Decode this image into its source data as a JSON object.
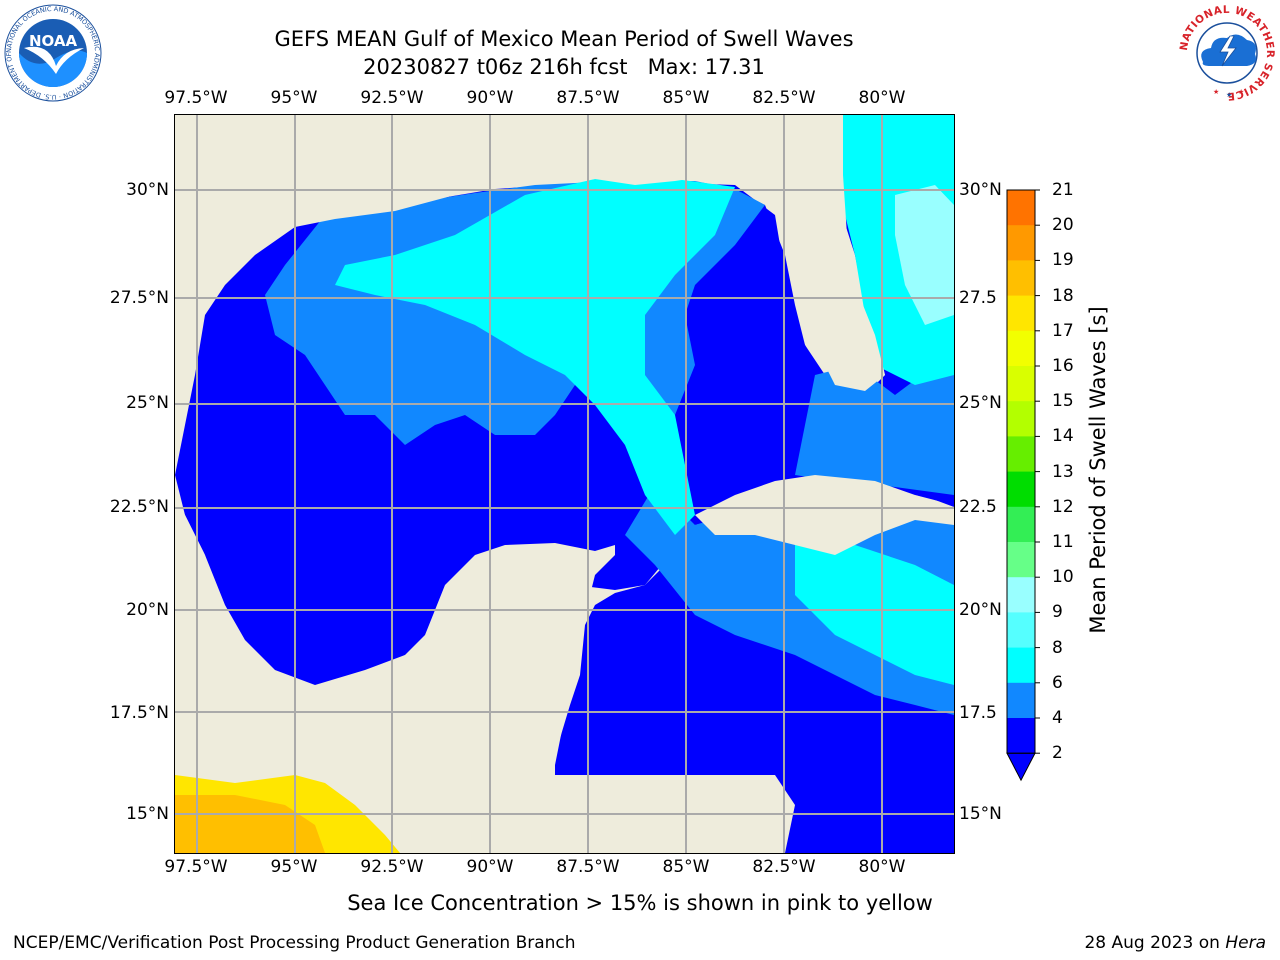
{
  "header": {
    "title_line1": "GEFS MEAN Gulf of Mexico Mean Period of Swell Waves",
    "title_line2": "20230827 t06z 216h fcst   Max: 17.31"
  },
  "map": {
    "lon_ticks_top": [
      "97.5°W",
      "95°W",
      "92.5°W",
      "90°W",
      "87.5°W",
      "85°W",
      "82.5°W",
      "80°W"
    ],
    "lon_ticks_bottom": [
      "97.5°W",
      "95°W",
      "92.5°W",
      "90°W",
      "87.5°W",
      "85°W",
      "82.5°W",
      "80°W"
    ],
    "lat_ticks_left": [
      "30°N",
      "27.5°N",
      "25°N",
      "22.5°N",
      "20°N",
      "17.5°N",
      "15°N"
    ],
    "lat_ticks_right": [
      "30°N",
      "27.5",
      "25°N",
      "22.5",
      "20°N",
      "17.5",
      "15°N"
    ],
    "land_color": "#eeecdc",
    "grid_color": "#aaaaaa"
  },
  "colorbar": {
    "title": "Mean Period of Swell Waves [s]",
    "labels": [
      "21",
      "20",
      "19",
      "18",
      "17",
      "16",
      "15",
      "14",
      "13",
      "12",
      "11",
      "10",
      "9",
      "8",
      "6",
      "4",
      "2"
    ],
    "colors": [
      "#ff0000",
      "#ff2600",
      "#ff4d00",
      "#ff7300",
      "#ff9900",
      "#ffbf00",
      "#ffe600",
      "#f2ff00",
      "#d9ff00",
      "#b3ff00",
      "#66ee00",
      "#00dd00",
      "#33ee55",
      "#66ff88",
      "#99ffff",
      "#55ffff",
      "#00ffff",
      "#1188ff",
      "#0000ff"
    ],
    "extend_color": "#0000ff"
  },
  "logos": {
    "noaa_text": "NOAA",
    "noaa_ring": "NATIONAL OCEANIC AND ATMOSPHERIC ADMINISTRATION · U.S. DEPARTMENT OF COMMERCE",
    "nws_ring": "NATIONAL WEATHER SERVICE"
  },
  "footer": {
    "note": "Sea Ice Concentration > 15% is shown in pink to yellow",
    "credit_left": "NCEP/EMC/Verification Post Processing Product Generation Branch",
    "credit_right_date": "28 Aug 2023 on",
    "credit_right_machine": "Hera"
  }
}
